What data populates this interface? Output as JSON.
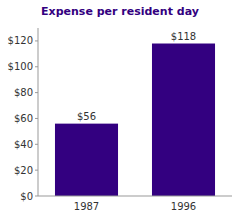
{
  "chart_data": {
    "type": "bar",
    "title": "Expense per resident day",
    "categories": [
      "1987",
      "1996"
    ],
    "values": [
      56,
      118
    ],
    "value_labels": [
      "$56",
      "$118"
    ],
    "color": "#330080",
    "data_labels": true,
    "grid": false,
    "ylim": [
      0,
      130
    ],
    "yticks": [
      {
        "value": 0,
        "label": "$0"
      },
      {
        "value": 20,
        "label": "$20"
      },
      {
        "value": 40,
        "label": "$40"
      },
      {
        "value": 60,
        "label": "$60"
      },
      {
        "value": 80,
        "label": "$80"
      },
      {
        "value": 100,
        "label": "$100"
      },
      {
        "value": 120,
        "label": "$120"
      }
    ]
  }
}
